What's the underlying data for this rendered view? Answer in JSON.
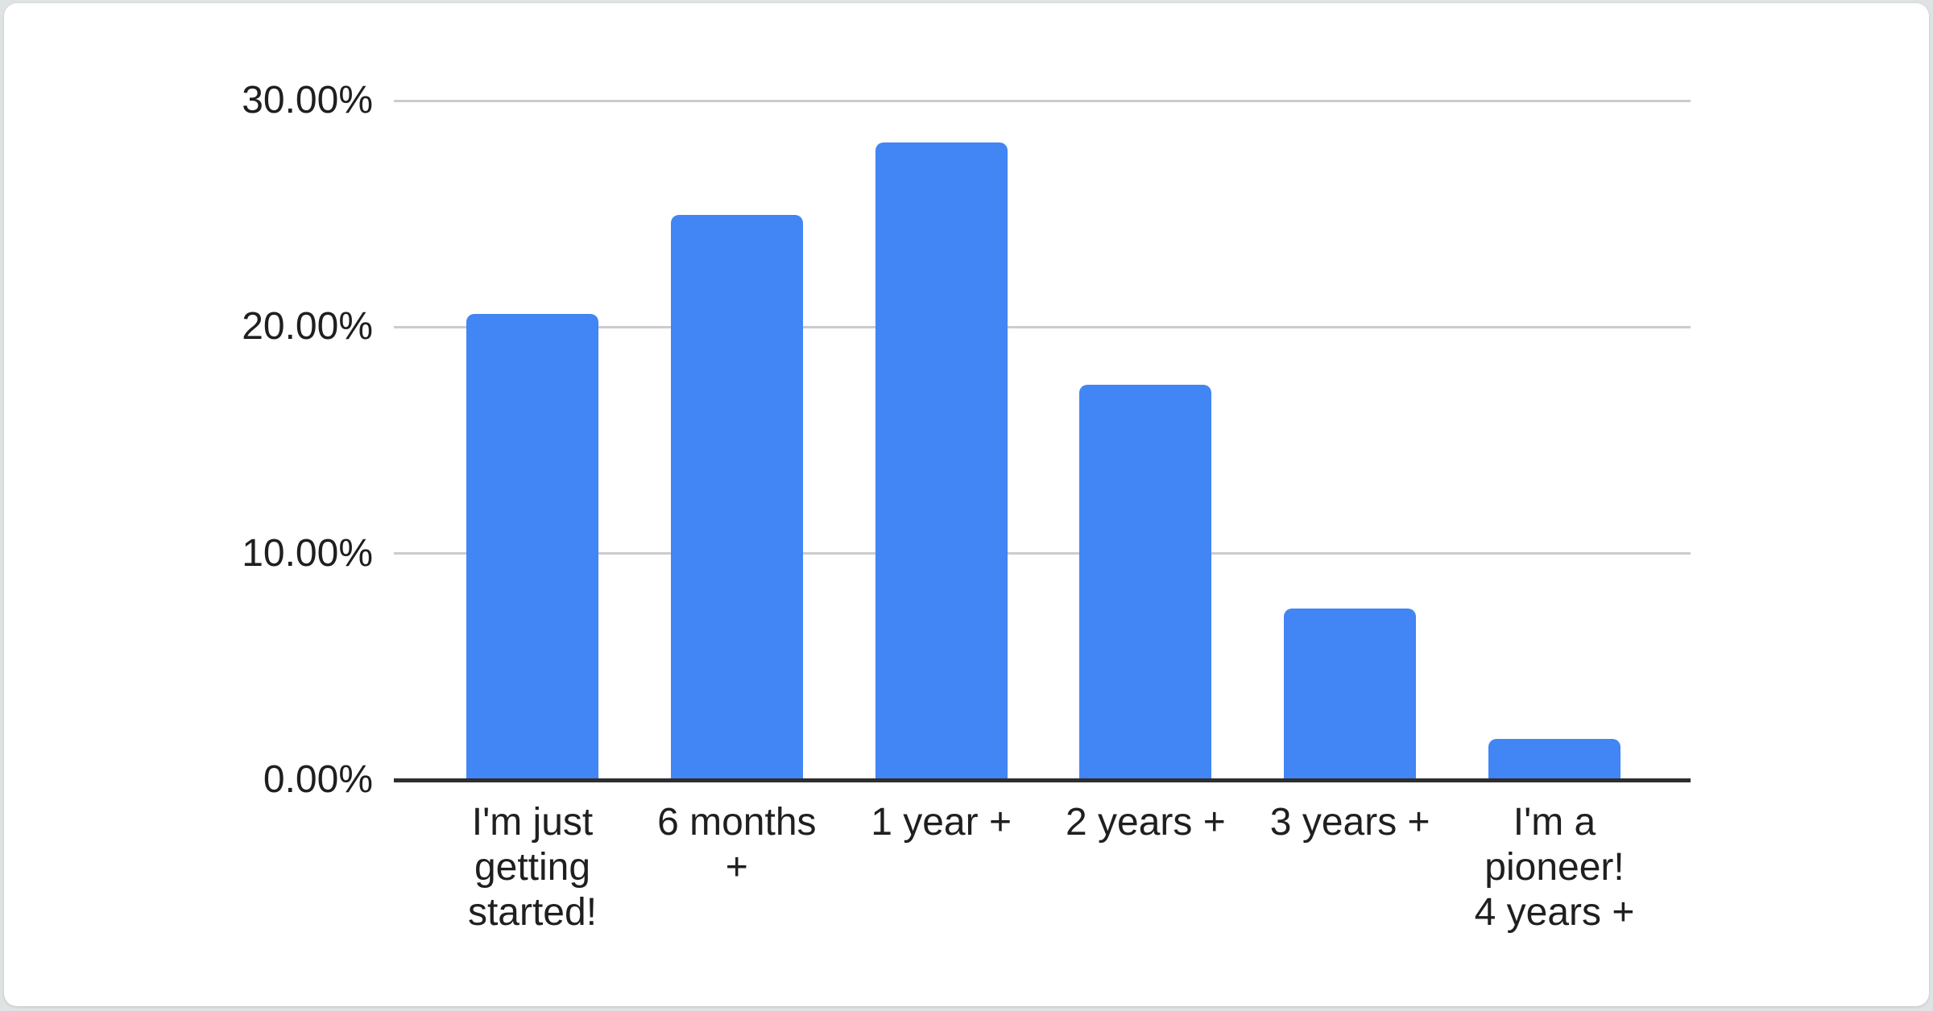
{
  "page": {
    "background_color": "#dfe3e4"
  },
  "card": {
    "background_color": "#ffffff"
  },
  "chart_data": {
    "type": "bar",
    "title": "",
    "xlabel": "",
    "ylabel": "",
    "categories": [
      "I'm just getting started!",
      "6 months +",
      "1 year +",
      "2 years +",
      "3 years +",
      "I'm a pioneer! 4 years +"
    ],
    "values": [
      20.5,
      24.9,
      28.1,
      17.4,
      7.5,
      1.75
    ],
    "value_unit": "%",
    "ylim": [
      0,
      30
    ],
    "y_ticks": [
      {
        "label": "0.00%",
        "value": 0
      },
      {
        "label": "10.00%",
        "value": 10
      },
      {
        "label": "20.00%",
        "value": 20
      },
      {
        "label": "30.00%",
        "value": 30
      }
    ],
    "grid": true,
    "legend_position": "none",
    "bar_color": "#4285f4",
    "gridline_color": "#cccccc",
    "axis_line_color": "#2e2e2e",
    "label_color": "#1f1f1f"
  }
}
